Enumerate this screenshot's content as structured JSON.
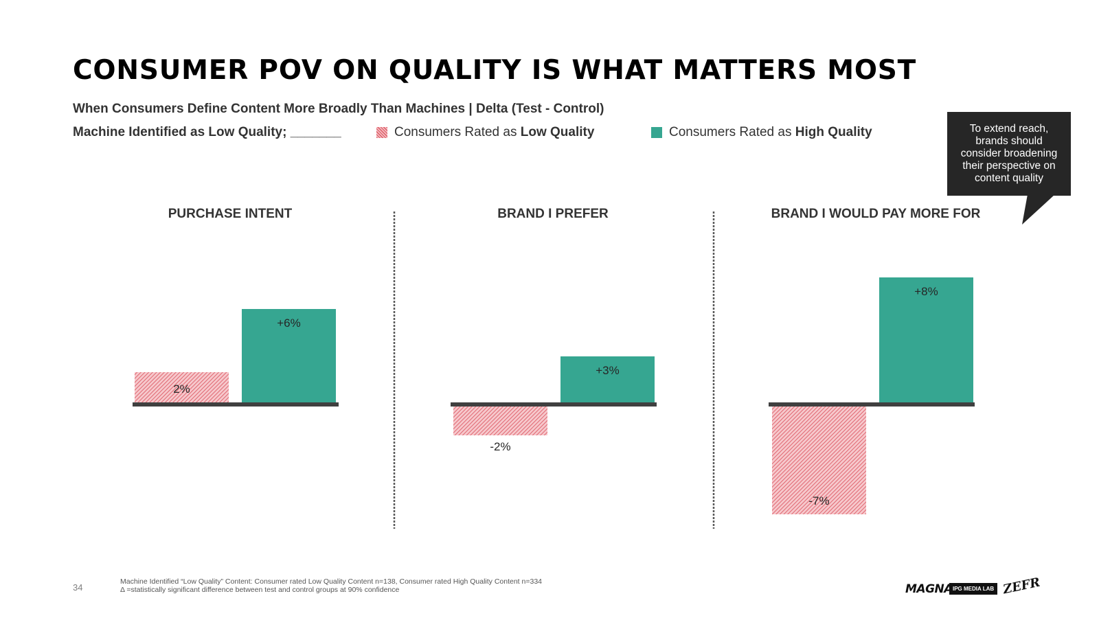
{
  "header": {
    "title": "CONSUMER POV ON QUALITY IS WHAT MATTERS MOST",
    "subtitle": "When Consumers Define Content More Broadly Than Machines | Delta (Test - Control)",
    "legend_intro": "Machine Identified as Low Quality; _______"
  },
  "legend": {
    "low": {
      "prefix": "Consumers Rated as ",
      "bold": "Low Quality"
    },
    "high": {
      "prefix": "Consumers Rated as ",
      "bold": "High Quality"
    }
  },
  "callout": {
    "text": "To extend reach, brands should consider broadening their perspective on content quality"
  },
  "colors": {
    "low_stroke": "#e06670",
    "low_fill": "#f6c8cc",
    "high": "#36a691",
    "axis": "#404040",
    "divider": "#595959"
  },
  "chart_data": [
    {
      "type": "bar",
      "title": "PURCHASE INTENT",
      "categories": [
        "Consumers Rated as Low Quality",
        "Consumers Rated as High Quality"
      ],
      "values": [
        2,
        6
      ],
      "labels": [
        "2%",
        "+6%"
      ],
      "unit": "%"
    },
    {
      "type": "bar",
      "title": "BRAND I PREFER",
      "categories": [
        "Consumers Rated as Low Quality",
        "Consumers Rated as High Quality"
      ],
      "values": [
        -2,
        3
      ],
      "labels": [
        "-2%",
        "+3%"
      ],
      "unit": "%"
    },
    {
      "type": "bar",
      "title": "BRAND I WOULD PAY MORE FOR",
      "categories": [
        "Consumers Rated as Low Quality",
        "Consumers Rated as High Quality"
      ],
      "values": [
        -7,
        8
      ],
      "labels": [
        "-7%",
        "+8%"
      ],
      "unit": "%"
    }
  ],
  "footer": {
    "page_number": "34",
    "footnote_1": "Machine Identified “Low Quality” Content: Consumer rated Low Quality Content n=138, Consumer rated High Quality Content n=334",
    "footnote_2": "Δ =statistically significant difference between test and control groups at 90% confidence",
    "logo_magna": "MAGNA",
    "logo_ipg": "IPG MEDIA LAB",
    "logo_zefr": "ZEFR"
  }
}
